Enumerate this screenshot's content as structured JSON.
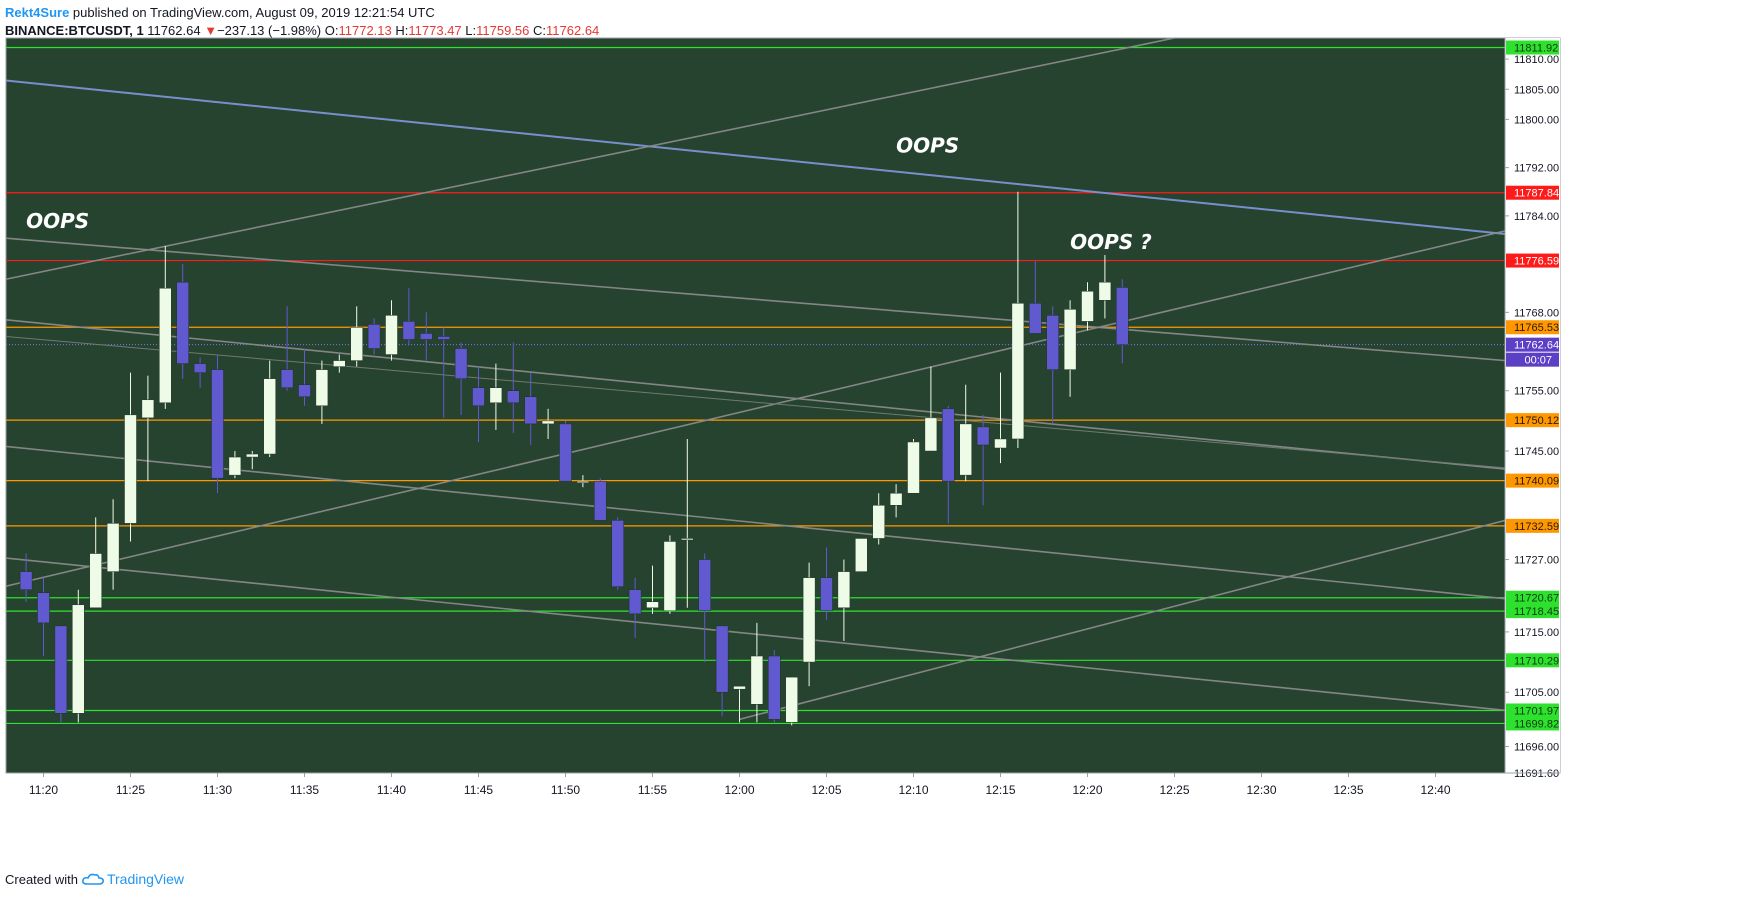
{
  "header": {
    "author": "Rekt4Sure",
    "published": " published on TradingView.com, August 09, 2019 12:21:54 UTC",
    "symbol": "BINANCE:BTCUSDT, 1",
    "last": "11762.64",
    "change": "−237.13 (−1.98%)",
    "o_label": "O:",
    "o_value": "11772.13",
    "h_label": "H:",
    "h_value": "11773.47",
    "l_label": "L:",
    "l_value": "11759.56",
    "c_label": "C:",
    "c_value": "11762.64"
  },
  "footer": {
    "created_with": "Created with",
    "brand": "TradingView"
  },
  "colors": {
    "background": "#26432f",
    "bull": "#eefbe6",
    "bear": "#6159cf",
    "green_level": "#2ee12e",
    "orange_level": "#ff9800",
    "red_level": "#ff1a1a",
    "blue_trend": "#7d94d6",
    "grey_trend": "#8a8a8a"
  },
  "chart_data": {
    "type": "candlestick",
    "x_unit": "time (1-minute bars, Aug 09 2019)",
    "y_range": [
      11691.6,
      11813.5
    ],
    "price_ticks": [
      "11810.00",
      "11805.00",
      "11800.00",
      "11792.00",
      "11784.00",
      "11768.00",
      "11755.00",
      "11745.00",
      "11727.00",
      "11715.00",
      "11705.00",
      "11696.00",
      "11691.60"
    ],
    "time_ticks": [
      "11:20",
      "11:25",
      "11:30",
      "11:35",
      "11:40",
      "11:45",
      "11:50",
      "11:55",
      "12:00",
      "12:05",
      "12:10",
      "12:15",
      "12:20",
      "12:25",
      "12:30",
      "12:35",
      "12:40"
    ],
    "candles": [
      {
        "t": "11:19",
        "o": 11725.0,
        "h": 11728.0,
        "l": 11720.0,
        "c": 11722.0
      },
      {
        "t": "11:20",
        "o": 11721.5,
        "h": 11724.0,
        "l": 11711.0,
        "c": 11716.5
      },
      {
        "t": "11:21",
        "o": 11716.0,
        "h": 11716.0,
        "l": 11700.0,
        "c": 11701.5
      },
      {
        "t": "11:22",
        "o": 11701.5,
        "h": 11722.0,
        "l": 11700.0,
        "c": 11719.5
      },
      {
        "t": "11:23",
        "o": 11719.0,
        "h": 11734.0,
        "l": 11719.0,
        "c": 11728.0
      },
      {
        "t": "11:24",
        "o": 11725.0,
        "h": 11737.0,
        "l": 11722.0,
        "c": 11733.0
      },
      {
        "t": "11:25",
        "o": 11733.0,
        "h": 11758.0,
        "l": 11730.0,
        "c": 11751.0
      },
      {
        "t": "11:26",
        "o": 11750.5,
        "h": 11757.5,
        "l": 11740.0,
        "c": 11753.5
      },
      {
        "t": "11:27",
        "o": 11753.0,
        "h": 11779.0,
        "l": 11752.0,
        "c": 11772.0
      },
      {
        "t": "11:28",
        "o": 11773.0,
        "h": 11776.0,
        "l": 11757.0,
        "c": 11759.5
      },
      {
        "t": "11:29",
        "o": 11759.5,
        "h": 11760.5,
        "l": 11755.5,
        "c": 11758.0
      },
      {
        "t": "11:30",
        "o": 11758.5,
        "h": 11761.0,
        "l": 11738.0,
        "c": 11740.5
      },
      {
        "t": "11:31",
        "o": 11741.0,
        "h": 11745.0,
        "l": 11740.5,
        "c": 11744.0
      },
      {
        "t": "11:32",
        "o": 11744.0,
        "h": 11745.0,
        "l": 11742.0,
        "c": 11744.5
      },
      {
        "t": "11:33",
        "o": 11744.5,
        "h": 11760.0,
        "l": 11744.0,
        "c": 11757.0
      },
      {
        "t": "11:34",
        "o": 11758.5,
        "h": 11769.0,
        "l": 11755.0,
        "c": 11755.5
      },
      {
        "t": "11:35",
        "o": 11756.0,
        "h": 11762.0,
        "l": 11752.5,
        "c": 11754.0
      },
      {
        "t": "11:36",
        "o": 11752.5,
        "h": 11760.0,
        "l": 11749.5,
        "c": 11758.5
      },
      {
        "t": "11:37",
        "o": 11759.0,
        "h": 11761.0,
        "l": 11758.0,
        "c": 11760.0
      },
      {
        "t": "11:38",
        "o": 11760.0,
        "h": 11769.0,
        "l": 11759.0,
        "c": 11765.5
      },
      {
        "t": "11:39",
        "o": 11766.0,
        "h": 11767.0,
        "l": 11761.0,
        "c": 11762.0
      },
      {
        "t": "11:40",
        "o": 11761.0,
        "h": 11770.0,
        "l": 11760.0,
        "c": 11767.5
      },
      {
        "t": "11:41",
        "o": 11766.5,
        "h": 11772.0,
        "l": 11762.5,
        "c": 11763.5
      },
      {
        "t": "11:42",
        "o": 11764.5,
        "h": 11768.0,
        "l": 11760.0,
        "c": 11763.5
      },
      {
        "t": "11:43",
        "o": 11764.0,
        "h": 11765.5,
        "l": 11750.5,
        "c": 11763.5
      },
      {
        "t": "11:44",
        "o": 11762.0,
        "h": 11763.0,
        "l": 11751.0,
        "c": 11757.0
      },
      {
        "t": "11:45",
        "o": 11755.5,
        "h": 11759.0,
        "l": 11746.5,
        "c": 11752.5
      },
      {
        "t": "11:46",
        "o": 11753.0,
        "h": 11759.5,
        "l": 11748.5,
        "c": 11755.5
      },
      {
        "t": "11:47",
        "o": 11755.0,
        "h": 11763.0,
        "l": 11748.0,
        "c": 11753.0
      },
      {
        "t": "11:48",
        "o": 11754.0,
        "h": 11758.0,
        "l": 11746.0,
        "c": 11749.5
      },
      {
        "t": "11:49",
        "o": 11749.5,
        "h": 11752.0,
        "l": 11747.0,
        "c": 11750.0
      },
      {
        "t": "11:50",
        "o": 11749.5,
        "h": 11750.0,
        "l": 11740.0,
        "c": 11740.0
      },
      {
        "t": "11:51",
        "o": 11740.0,
        "h": 11741.0,
        "l": 11739.0,
        "c": 11740.0
      },
      {
        "t": "11:52",
        "o": 11740.0,
        "h": 11740.5,
        "l": 11733.5,
        "c": 11733.5
      },
      {
        "t": "11:53",
        "o": 11733.5,
        "h": 11734.0,
        "l": 11722.0,
        "c": 11722.5
      },
      {
        "t": "11:54",
        "o": 11722.0,
        "h": 11724.0,
        "l": 11714.0,
        "c": 11718.0
      },
      {
        "t": "11:55",
        "o": 11719.0,
        "h": 11726.0,
        "l": 11718.0,
        "c": 11720.0
      },
      {
        "t": "11:56",
        "o": 11718.5,
        "h": 11731.0,
        "l": 11718.0,
        "c": 11730.0
      },
      {
        "t": "11:57",
        "o": 11730.5,
        "h": 11747.0,
        "l": 11719.0,
        "c": 11730.5
      },
      {
        "t": "11:58",
        "o": 11727.0,
        "h": 11728.0,
        "l": 11710.0,
        "c": 11718.5
      },
      {
        "t": "11:59",
        "o": 11716.0,
        "h": 11716.0,
        "l": 11701.0,
        "c": 11705.0
      },
      {
        "t": "12:00",
        "o": 11705.5,
        "h": 11706.0,
        "l": 11700.0,
        "c": 11706.0
      },
      {
        "t": "12:01",
        "o": 11703.0,
        "h": 11716.5,
        "l": 11700.0,
        "c": 11711.0
      },
      {
        "t": "12:02",
        "o": 11711.0,
        "h": 11712.0,
        "l": 11700.0,
        "c": 11700.5
      },
      {
        "t": "12:03",
        "o": 11700.0,
        "h": 11707.5,
        "l": 11699.5,
        "c": 11707.5
      },
      {
        "t": "12:04",
        "o": 11710.0,
        "h": 11726.5,
        "l": 11706.0,
        "c": 11724.0
      },
      {
        "t": "12:05",
        "o": 11724.0,
        "h": 11729.0,
        "l": 11717.0,
        "c": 11718.5
      },
      {
        "t": "12:06",
        "o": 11719.0,
        "h": 11727.0,
        "l": 11713.5,
        "c": 11725.0
      },
      {
        "t": "12:07",
        "o": 11725.0,
        "h": 11730.0,
        "l": 11725.0,
        "c": 11730.5
      },
      {
        "t": "12:08",
        "o": 11730.5,
        "h": 11738.0,
        "l": 11729.5,
        "c": 11736.0
      },
      {
        "t": "12:09",
        "o": 11736.0,
        "h": 11739.5,
        "l": 11734.0,
        "c": 11738.0
      },
      {
        "t": "12:10",
        "o": 11738.0,
        "h": 11747.0,
        "l": 11738.0,
        "c": 11746.5
      },
      {
        "t": "12:11",
        "o": 11745.0,
        "h": 11759.0,
        "l": 11745.0,
        "c": 11750.5
      },
      {
        "t": "12:12",
        "o": 11752.0,
        "h": 11752.5,
        "l": 11733.0,
        "c": 11740.0
      },
      {
        "t": "12:13",
        "o": 11741.0,
        "h": 11756.0,
        "l": 11740.0,
        "c": 11749.5
      },
      {
        "t": "12:14",
        "o": 11749.0,
        "h": 11751.0,
        "l": 11736.0,
        "c": 11746.0
      },
      {
        "t": "12:15",
        "o": 11745.5,
        "h": 11758.0,
        "l": 11743.0,
        "c": 11747.0
      },
      {
        "t": "12:16",
        "o": 11747.0,
        "h": 11788.0,
        "l": 11745.5,
        "c": 11769.5
      },
      {
        "t": "12:17",
        "o": 11769.5,
        "h": 11776.5,
        "l": 11765.0,
        "c": 11764.5
      },
      {
        "t": "12:18",
        "o": 11767.5,
        "h": 11769.0,
        "l": 11749.5,
        "c": 11758.5
      },
      {
        "t": "12:19",
        "o": 11758.5,
        "h": 11770.0,
        "l": 11754.0,
        "c": 11768.5
      },
      {
        "t": "12:20",
        "o": 11766.5,
        "h": 11773.0,
        "l": 11765.0,
        "c": 11771.5
      },
      {
        "t": "12:21",
        "o": 11770.0,
        "h": 11777.5,
        "l": 11767.0,
        "c": 11773.0
      },
      {
        "t": "12:22",
        "o": 11772.13,
        "h": 11773.47,
        "l": 11759.56,
        "c": 11762.64
      }
    ],
    "horizontal_levels": [
      {
        "price": 11811.92,
        "label": "11811.92",
        "color": "green"
      },
      {
        "price": 11787.84,
        "label": "11787.84",
        "color": "red"
      },
      {
        "price": 11776.59,
        "label": "11776.59",
        "color": "red"
      },
      {
        "price": 11765.53,
        "label": "11765.53",
        "color": "orange"
      },
      {
        "price": 11750.12,
        "label": "11750.12",
        "color": "orange"
      },
      {
        "price": 11740.09,
        "label": "11740.09",
        "color": "orange"
      },
      {
        "price": 11732.59,
        "label": "11732.59",
        "color": "orange"
      },
      {
        "price": 11720.67,
        "label": "11720.67",
        "color": "green"
      },
      {
        "price": 11718.45,
        "label": "11718.45",
        "color": "green"
      },
      {
        "price": 11710.29,
        "label": "11710.29",
        "color": "green"
      },
      {
        "price": 11701.97,
        "label": "11701.97",
        "color": "green"
      },
      {
        "price": 11699.82,
        "label": "11699.82",
        "color": "green"
      }
    ],
    "last_price": {
      "price": 11762.64,
      "label": "11762.64",
      "countdown": "00:07"
    },
    "trend_lines": [
      {
        "color": "blue",
        "from": [
          "11:17",
          11806.7
        ],
        "to": [
          "12:44",
          11781.0
        ]
      },
      {
        "color": "grey",
        "from": [
          "11:17",
          11773.0
        ],
        "to": [
          "12:25",
          11813.5
        ]
      },
      {
        "color": "grey",
        "from": [
          "11:17",
          11780.5
        ],
        "to": [
          "12:44",
          11760.0
        ]
      },
      {
        "color": "grey",
        "from": [
          "11:17",
          11767.0
        ],
        "to": [
          "12:44",
          11742.0
        ]
      },
      {
        "color": "grey",
        "from": [
          "11:17",
          11722.0
        ],
        "to": [
          "12:44",
          11781.5
        ]
      },
      {
        "color": "grey",
        "from": [
          "11:17",
          11746.0
        ],
        "to": [
          "12:44",
          11720.5
        ]
      },
      {
        "color": "grey",
        "from": [
          "11:17",
          11727.5
        ],
        "to": [
          "12:44",
          11702.0
        ]
      },
      {
        "color": "grey",
        "from": [
          "12:00",
          11700.5
        ],
        "to": [
          "12:44",
          11733.5
        ]
      }
    ],
    "annotations": [
      {
        "text": "OOPS",
        "at": [
          "11:19",
          11782.0
        ]
      },
      {
        "text": "OOPS",
        "at": [
          "12:09",
          11794.5
        ]
      },
      {
        "text": "OOPS ?",
        "at": [
          "12:19",
          11778.5
        ]
      }
    ]
  }
}
